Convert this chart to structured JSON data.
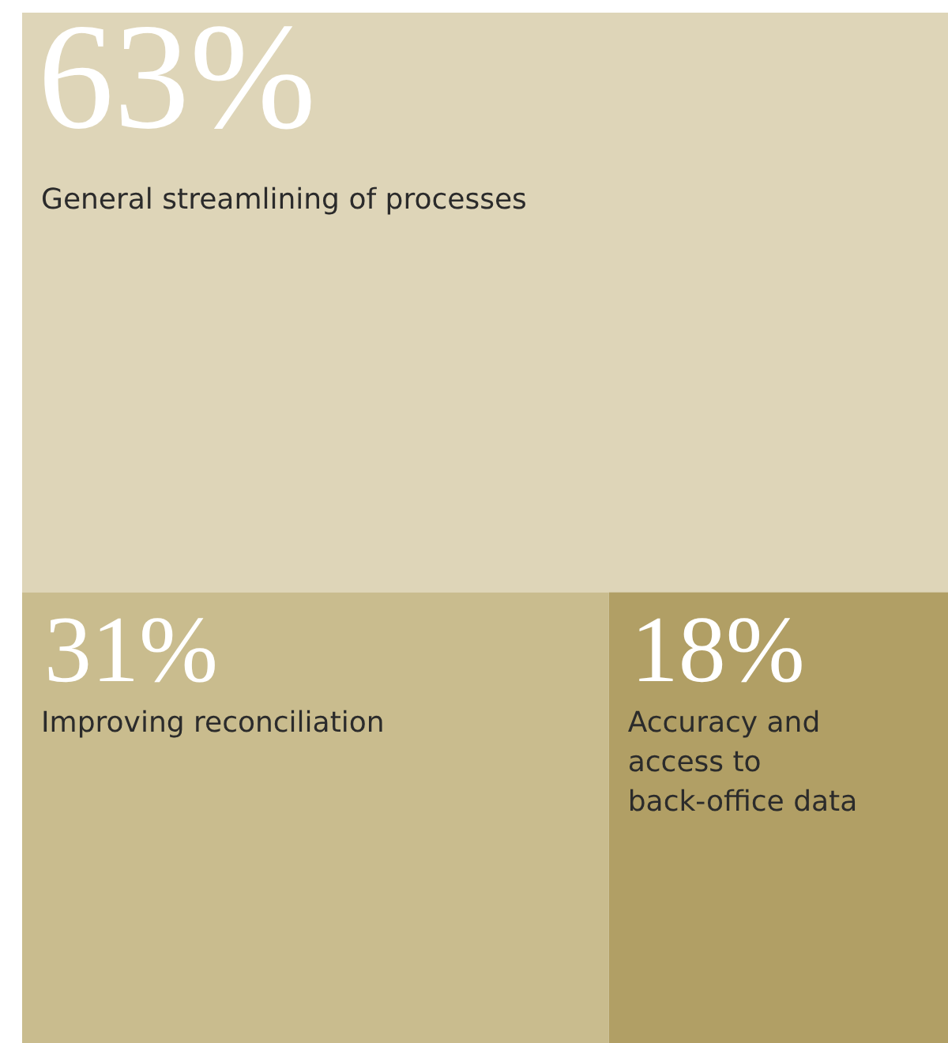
{
  "chart_data": {
    "type": "other",
    "categories": [
      "General streamlining of processes",
      "Improving reconciliation",
      "Accuracy and access to back-office data"
    ],
    "values": [
      63,
      31,
      18
    ],
    "value_labels": [
      "63%",
      "31%",
      "18%"
    ],
    "colors": [
      "#ded5b8",
      "#c9bc8e",
      "#b19f65"
    ]
  }
}
